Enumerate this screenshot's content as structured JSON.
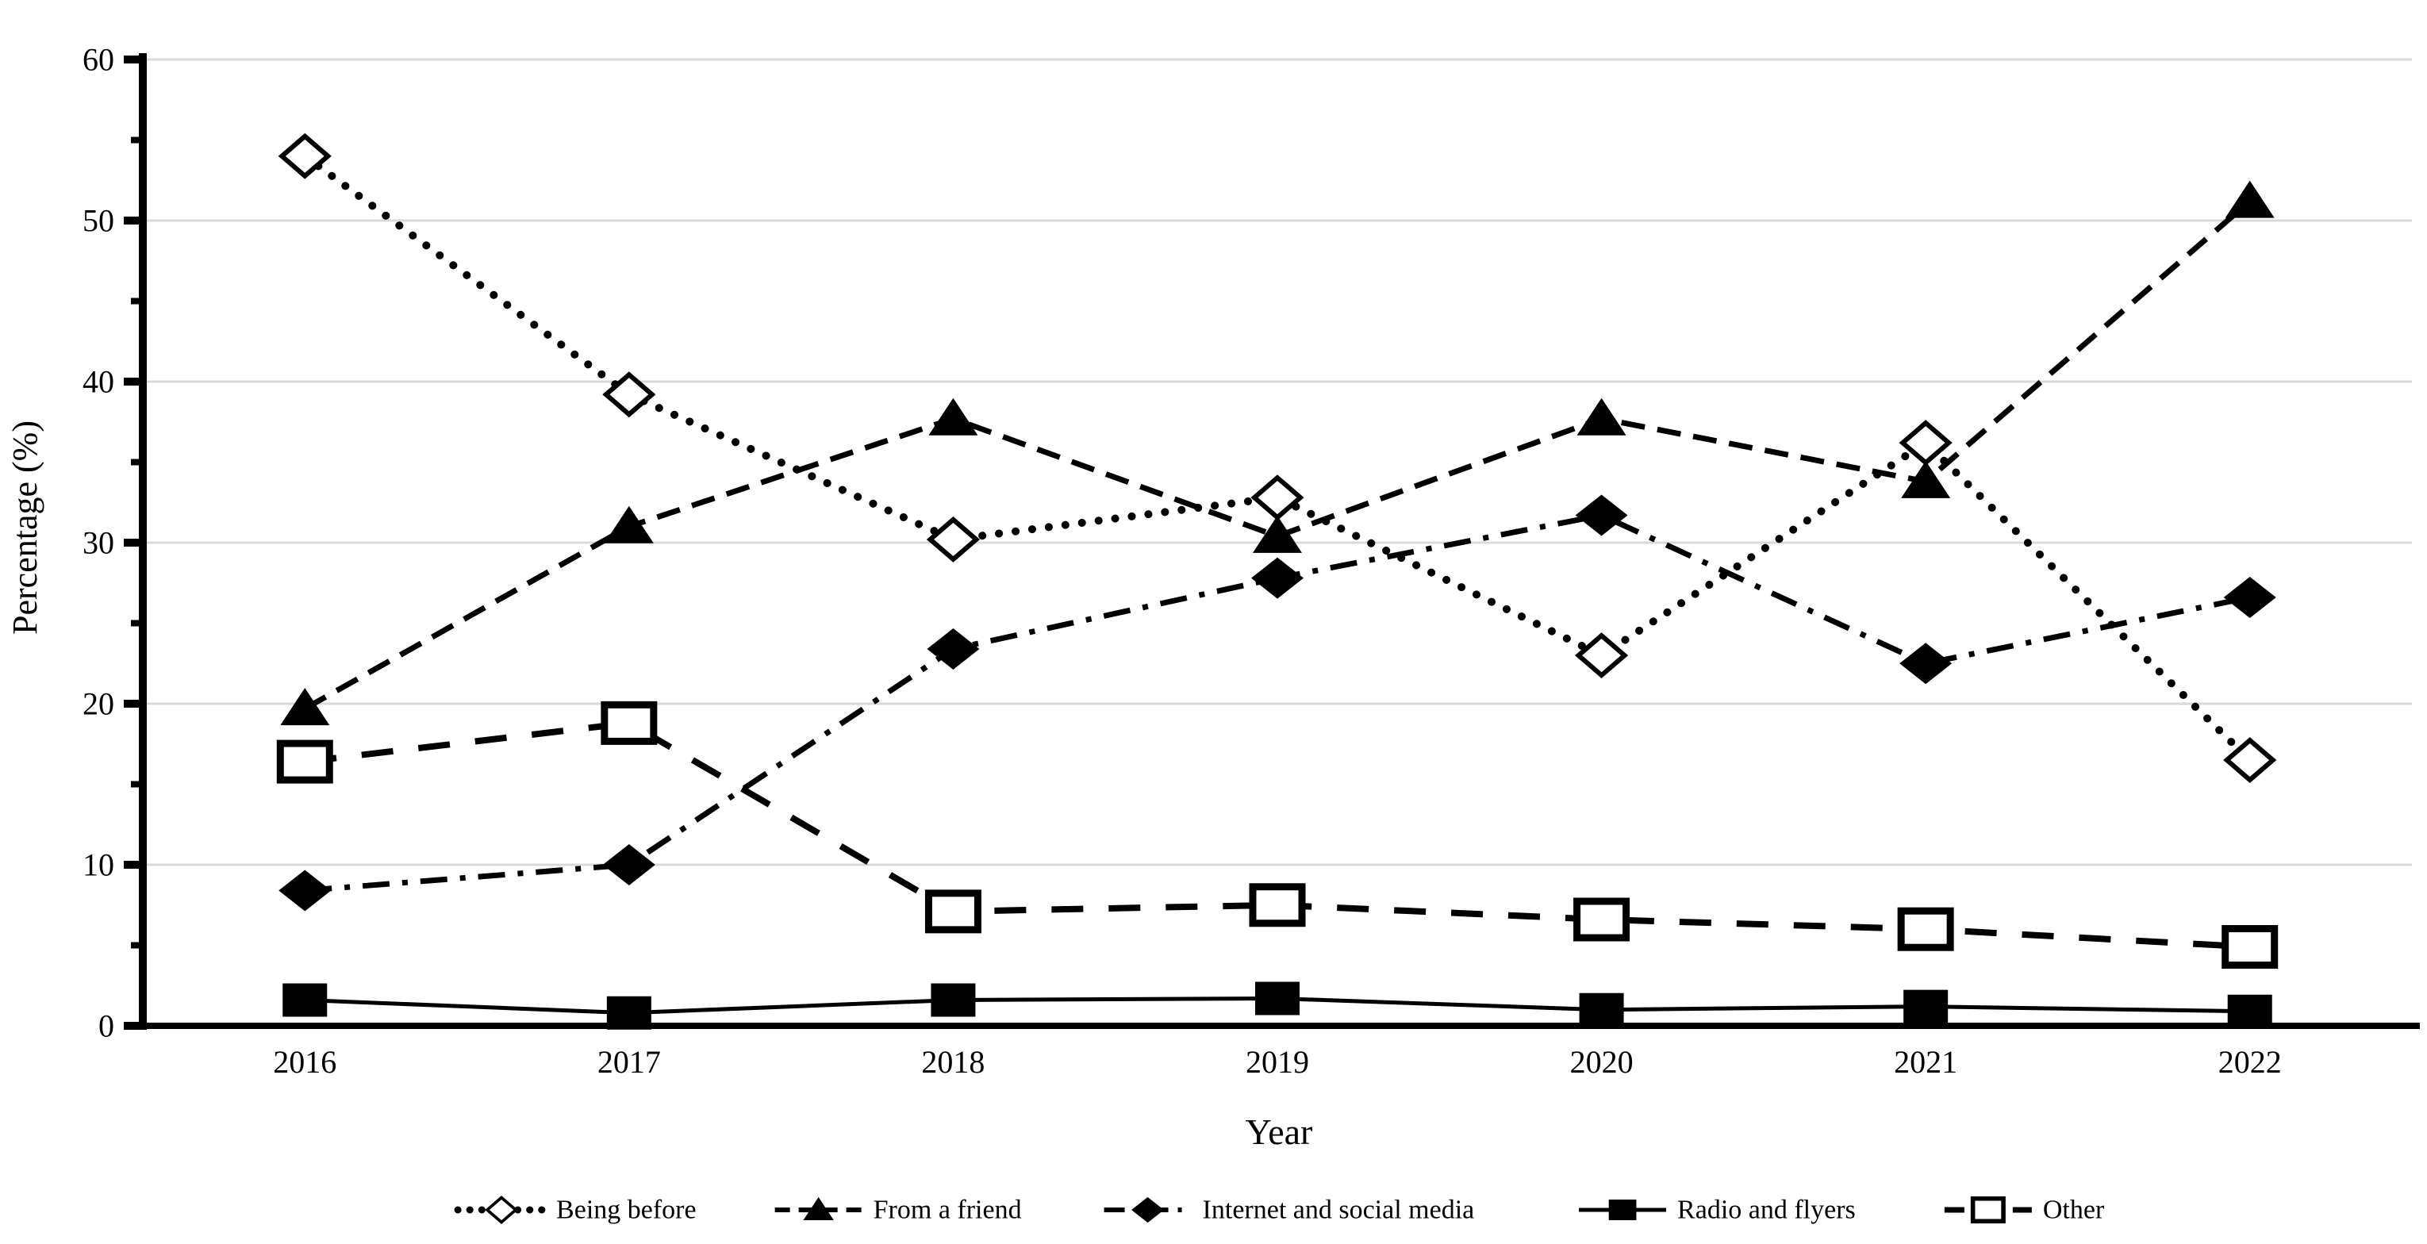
{
  "chart_data": {
    "type": "line",
    "title": "",
    "xlabel": "Year",
    "ylabel": "Percentage (%)",
    "categories": [
      "2016",
      "2017",
      "2018",
      "2019",
      "2020",
      "2021",
      "2022"
    ],
    "ylim": [
      0,
      60
    ],
    "ytick_major": 10,
    "ytick_minor": 5,
    "grid": "horizontal-major-only",
    "legend_position": "bottom-center",
    "series": [
      {
        "name": "Being before",
        "marker": "diamond-open",
        "line": "dotted",
        "values": [
          54.0,
          39.2,
          30.2,
          32.8,
          23.0,
          36.2,
          16.5
        ]
      },
      {
        "name": "From a friend",
        "marker": "triangle-filled",
        "line": "dashed",
        "values": [
          19.7,
          31.0,
          37.7,
          30.4,
          37.7,
          33.8,
          51.2
        ]
      },
      {
        "name": "Internet and social media",
        "marker": "diamond-filled",
        "line": "dashdot",
        "values": [
          8.4,
          10.0,
          23.4,
          27.8,
          31.7,
          22.5,
          26.6
        ]
      },
      {
        "name": "Radio and flyers",
        "marker": "square-filled",
        "line": "solid",
        "values": [
          1.6,
          0.8,
          1.6,
          1.7,
          1.0,
          1.2,
          0.9
        ]
      },
      {
        "name": "Other",
        "marker": "square-open",
        "line": "longdash",
        "values": [
          16.4,
          18.8,
          7.1,
          7.5,
          6.6,
          6.0,
          4.9
        ]
      }
    ],
    "colors": {
      "series": "#000000",
      "grid": "#d9d9d9",
      "background": "#ffffff",
      "axis": "#000000"
    }
  }
}
